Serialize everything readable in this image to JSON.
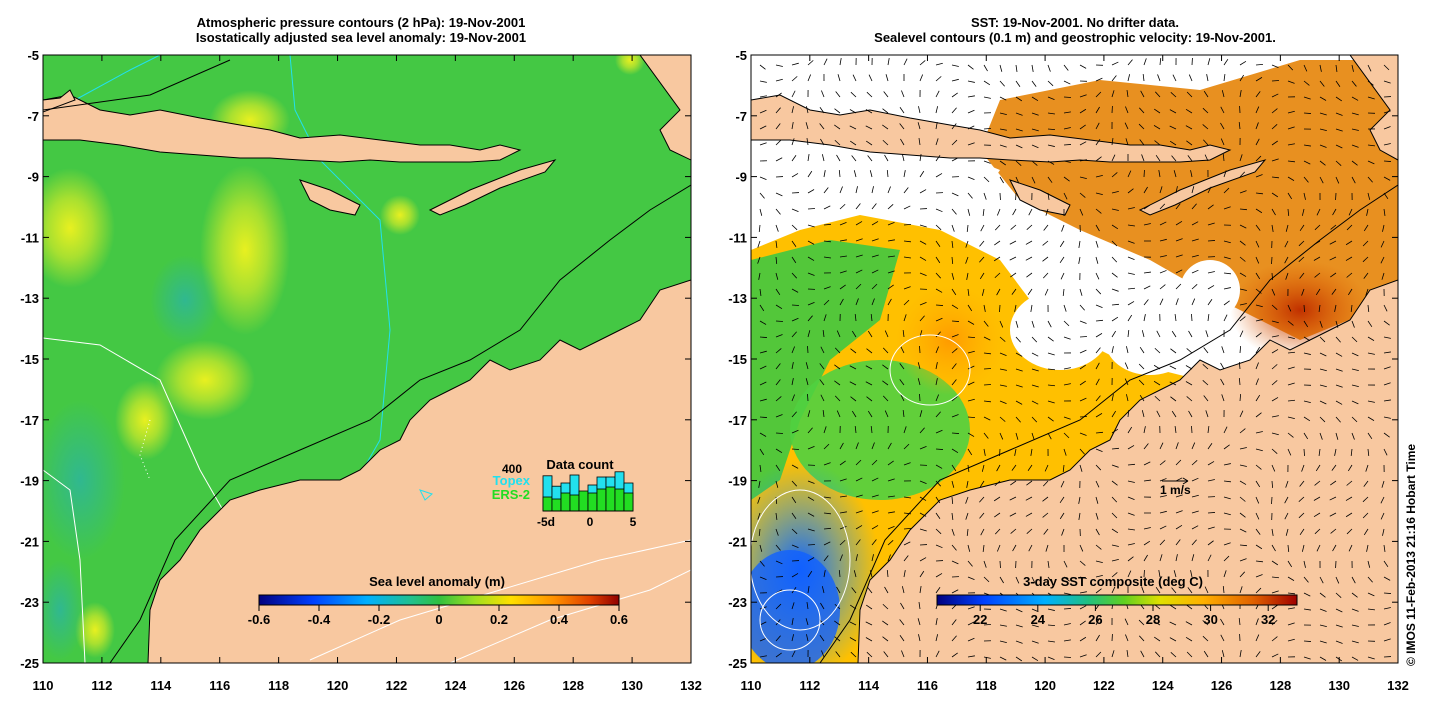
{
  "left_panel": {
    "title_line1": "Atmospheric pressure contours (2 hPa): 19-Nov-2001",
    "title_line2": "Isostatically adjusted sea level anomaly: 19-Nov-2001",
    "x_ticks": [
      "110",
      "112",
      "114",
      "116",
      "118",
      "120",
      "122",
      "124",
      "126",
      "128",
      "130",
      "132"
    ],
    "y_ticks": [
      "-5",
      "-7",
      "-9",
      "-11",
      "-13",
      "-15",
      "-17",
      "-19",
      "-21",
      "-23",
      "-25"
    ],
    "colorbar": {
      "title": "Sea level anomaly (m)",
      "ticks": [
        "-0.6",
        "-0.4",
        "-0.2",
        "0",
        "0.2",
        "0.4",
        "0.6"
      ],
      "range": [
        -0.6,
        0.6
      ]
    },
    "data_count": {
      "title": "Data count",
      "max_label": "400",
      "series": [
        {
          "name": "Topex",
          "color": "#22e0ee"
        },
        {
          "name": "ERS-2",
          "color": "#22dd22"
        }
      ],
      "x_labels": [
        "-5d",
        "0",
        "5"
      ]
    }
  },
  "right_panel": {
    "title_line1": "SST: 19-Nov-2001. No drifter data.",
    "title_line2": "Sealevel contours (0.1 m) and geostrophic velocity: 19-Nov-2001.",
    "x_ticks": [
      "110",
      "112",
      "114",
      "116",
      "118",
      "120",
      "122",
      "124",
      "126",
      "128",
      "130",
      "132"
    ],
    "y_ticks": [
      "-5",
      "-7",
      "-9",
      "-11",
      "-13",
      "-15",
      "-17",
      "-19",
      "-21",
      "-23",
      "-25"
    ],
    "colorbar": {
      "title": "3-day SST composite (deg C)",
      "ticks": [
        "22",
        "24",
        "26",
        "28",
        "30",
        "32"
      ],
      "range": [
        20.5,
        33
      ]
    },
    "velocity_scale_label": "1 m/s"
  },
  "credit": "© IMOS 11-Feb-2013 21:16 Hobart Time",
  "colors": {
    "land": "#f8c8a0",
    "ocean_left": "#44cc44",
    "axis": "#000000"
  }
}
